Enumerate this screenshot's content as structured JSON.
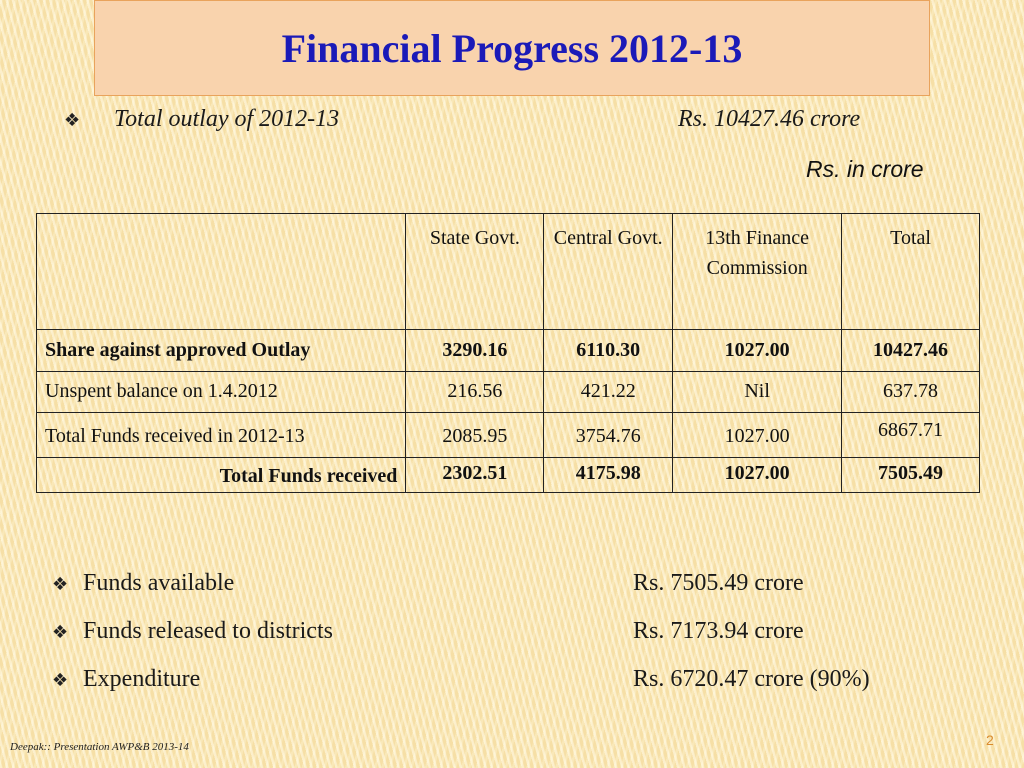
{
  "slide": {
    "title": "Financial Progress 2012-13",
    "outlay_label": "Total outlay of 2012-13",
    "outlay_value": "Rs. 10427.46 crore",
    "unit_note": "Rs. in crore",
    "bullet_glyph": "❖",
    "footer": "Deepak:: Presentation AWP&B 2013-14",
    "page_number": "2"
  },
  "table": {
    "headers": [
      "",
      "State Govt.",
      "Central Govt.",
      "13th Finance Commission",
      "Total"
    ],
    "rows": [
      {
        "label": "Share against approved Outlay",
        "values": [
          "3290.16",
          "6110.30",
          "1027.00",
          "10427.46"
        ]
      },
      {
        "label": "Unspent balance on 1.4.2012",
        "values": [
          "216.56",
          "421.22",
          "Nil",
          "637.78"
        ]
      },
      {
        "label": "Total Funds received in 2012-13",
        "values": [
          "2085.95",
          "3754.76",
          "1027.00",
          "6867.71"
        ]
      },
      {
        "label": "Total Funds received",
        "values": [
          "2302.51",
          "4175.98",
          "1027.00",
          "7505.49"
        ]
      }
    ]
  },
  "summary": [
    {
      "label": "Funds available",
      "value": "Rs. 7505.49 crore"
    },
    {
      "label": "Funds released to districts",
      "value": "Rs. 7173.94 crore"
    },
    {
      "label": "Expenditure",
      "value": "Rs. 6720.47 crore (90%)"
    }
  ],
  "colors": {
    "title": "#1b1ab8",
    "title_box_bg": "#f9d3ad",
    "title_box_border": "#e9a35c",
    "background": "#fbe7b2",
    "page_number": "#d98b2e"
  }
}
